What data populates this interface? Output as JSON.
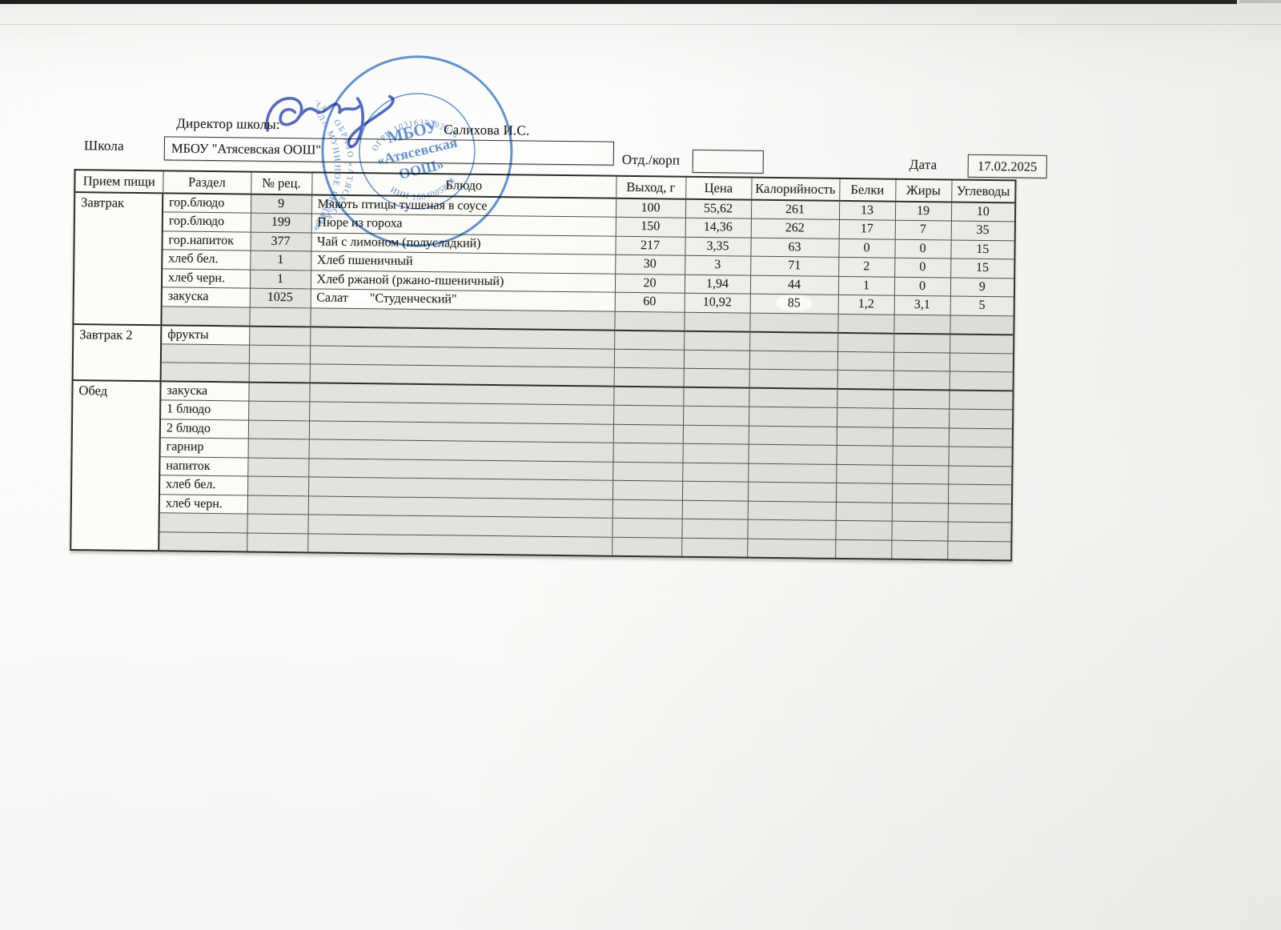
{
  "page": {
    "director_label": "Директор школы:",
    "director_name": "Салихова И.С.",
    "school_label": "Школа",
    "school_value": "МБОУ \"Атясевская ООШ\"",
    "dept_label": "Отд./корп",
    "dept_value": "",
    "date_label": "Дата",
    "date_value": "17.02.2025"
  },
  "stamp": {
    "color": "#4a7fc6",
    "ring1_text": "НОЕ БЮДЖЕТНОЕ ОБЩЕОБРАЗОВАТЕЛЬНОЕ УЧРЕЖДЕНИЕ АТЯСЕВСКАЯ ОСНОВНАЯ ШКОЛА МУНИЦИПАЛЬ",
    "ring2_text": "«АТЯСЕВСКАЯ ШКОЛА» АКТАНЫШСКОГО МУНИЦИПАЛЬНОГО РАЙОНА ∙ ОБРАЗОВАТЕЛЬ",
    "ogrn": "ОГРН 1031635202818",
    "inn": "ИНН 1604005868",
    "center_line1": "МБОУ",
    "center_line2": "«Атясевская",
    "center_line3": "ООШ»"
  },
  "signature": {
    "ink_color": "#3c55b4"
  },
  "table": {
    "headers": [
      "Прием пищи",
      "Раздел",
      "№ рец.",
      "Блюдо",
      "Выход, г",
      "Цена",
      "Калорийность",
      "Белки",
      "Жиры",
      "Углеводы"
    ],
    "sections": [
      {
        "meal": "Завтрак",
        "rows": [
          {
            "cells": [
              "гор.блюдо",
              "9",
              "Мякоть птицы тушеная в соусе",
              "100",
              "55,62",
              "261",
              "13",
              "19",
              "10"
            ]
          },
          {
            "cells": [
              "гор.блюдо",
              "199",
              "Пюре из гороха",
              "150",
              "14,36",
              "262",
              "17",
              "7",
              "35"
            ]
          },
          {
            "cells": [
              "гор.напиток",
              "377",
              "Чай с лимоном (полусладкий)",
              "217",
              "3,35",
              "63",
              "0",
              "0",
              "15"
            ]
          },
          {
            "cells": [
              "хлеб бел.",
              "1",
              "Хлеб пшеничный",
              "30",
              "3",
              "71",
              "2",
              "0",
              "15"
            ]
          },
          {
            "cells": [
              "хлеб черн.",
              "1",
              "Хлеб ржаной (ржано-пшеничный)",
              "20",
              "1,94",
              "44",
              "1",
              "0",
              "9"
            ]
          },
          {
            "cells": [
              "закуска",
              "1025",
              "Салат \"Студенческий\"",
              "60",
              "10,92",
              "85",
              "1,2",
              "3,1",
              "5"
            ],
            "dish_parts": [
              "Салат",
              "\"Студенческий\""
            ],
            "patch_cal": true
          },
          {
            "cells": [
              "",
              "",
              "",
              "",
              "",
              "",
              "",
              "",
              ""
            ]
          }
        ]
      },
      {
        "meal": "Завтрак 2",
        "rows": [
          {
            "cells": [
              "фрукты",
              "",
              "",
              "",
              "",
              "",
              "",
              "",
              ""
            ]
          },
          {
            "cells": [
              "",
              "",
              "",
              "",
              "",
              "",
              "",
              "",
              ""
            ]
          },
          {
            "cells": [
              "",
              "",
              "",
              "",
              "",
              "",
              "",
              "",
              ""
            ]
          }
        ]
      },
      {
        "meal": "Обед",
        "rows": [
          {
            "cells": [
              "закуска",
              "",
              "",
              "",
              "",
              "",
              "",
              "",
              ""
            ]
          },
          {
            "cells": [
              "1 блюдо",
              "",
              "",
              "",
              "",
              "",
              "",
              "",
              ""
            ]
          },
          {
            "cells": [
              "2 блюдо",
              "",
              "",
              "",
              "",
              "",
              "",
              "",
              ""
            ]
          },
          {
            "cells": [
              "гарнир",
              "",
              "",
              "",
              "",
              "",
              "",
              "",
              ""
            ]
          },
          {
            "cells": [
              "напиток",
              "",
              "",
              "",
              "",
              "",
              "",
              "",
              ""
            ]
          },
          {
            "cells": [
              "хлеб бел.",
              "",
              "",
              "",
              "",
              "",
              "",
              "",
              ""
            ]
          },
          {
            "cells": [
              "хлеб черн.",
              "",
              "",
              "",
              "",
              "",
              "",
              "",
              ""
            ]
          },
          {
            "cells": [
              "",
              "",
              "",
              "",
              "",
              "",
              "",
              "",
              ""
            ]
          },
          {
            "cells": [
              "",
              "",
              "",
              "",
              "",
              "",
              "",
              "",
              ""
            ]
          }
        ]
      }
    ]
  }
}
